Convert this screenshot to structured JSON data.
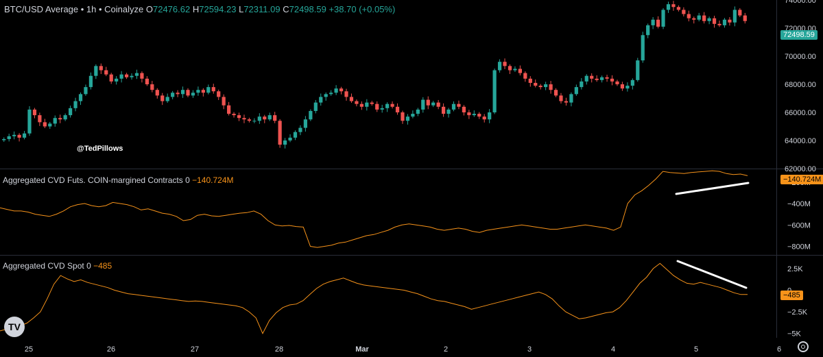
{
  "header": {
    "symbol": "BTC/USD Average • 1h • Coinalyze",
    "o_label": "O",
    "o": "72476.62",
    "h_label": "H",
    "h": "72594.23",
    "l_label": "L",
    "l": "72311.09",
    "c_label": "C",
    "c": "72498.59",
    "change": "+38.70 (+0.05%)"
  },
  "watermark": "@TedPillows",
  "panes": {
    "futs": {
      "label": "Aggregated CVD Futs. COIN-margined Contracts 0",
      "value": "−140.724M"
    },
    "spot": {
      "label": "Aggregated CVD Spot 0",
      "value": "−485"
    }
  },
  "colors": {
    "up": "#26a69a",
    "down": "#ef5350",
    "cvd": "#f7931a",
    "badge_price": "#26a69a",
    "badge_cvd": "#f7931a"
  },
  "icons": {
    "logo": "tradingview-logo-icon",
    "settings": "gear-icon"
  },
  "logo_text": "TV",
  "chart_data": [
    {
      "type": "candlestick",
      "title": "BTC/USD Average • 1h • Coinalyze",
      "x_ticks": [
        "25",
        "26",
        "27",
        "28",
        "Mar",
        "2",
        "3",
        "4",
        "5",
        "6"
      ],
      "y_ticks": [
        "74000.00",
        "72000.00",
        "70000.00",
        "68000.00",
        "66000.00",
        "64000.00",
        "62000.00"
      ],
      "ylim": [
        62000,
        74000
      ],
      "last_value": "72498.59",
      "close_series": [
        64100,
        64300,
        64400,
        64200,
        64500,
        66200,
        65800,
        65300,
        65000,
        65200,
        65600,
        65500,
        65800,
        66300,
        66800,
        67300,
        67800,
        68600,
        69300,
        69000,
        68700,
        68200,
        68400,
        68700,
        68500,
        68600,
        68800,
        68400,
        68000,
        67600,
        67200,
        66800,
        67100,
        67400,
        67300,
        67600,
        67200,
        67400,
        67600,
        67400,
        67800,
        67500,
        67100,
        66500,
        65900,
        65800,
        65600,
        65500,
        65400,
        65400,
        65700,
        65500,
        65800,
        65400,
        63700,
        64000,
        64200,
        64600,
        64900,
        65500,
        66100,
        66700,
        67100,
        67300,
        67400,
        67700,
        67500,
        67100,
        66800,
        66600,
        66400,
        66700,
        66600,
        66200,
        66300,
        66600,
        66400,
        66000,
        65400,
        65700,
        65900,
        66200,
        66900,
        66500,
        66700,
        66400,
        65900,
        66200,
        66600,
        66400,
        66000,
        65800,
        65900,
        65700,
        65500,
        66000,
        69000,
        69600,
        69300,
        69000,
        69100,
        68800,
        68400,
        68100,
        67900,
        67800,
        68000,
        67600,
        67200,
        66800,
        66700,
        67300,
        67800,
        68200,
        68600,
        68400,
        68300,
        68500,
        68400,
        68200,
        68000,
        67700,
        67900,
        68300,
        69700,
        71500,
        72200,
        72600,
        72100,
        73300,
        73700,
        73500,
        73300,
        73000,
        72700,
        72600,
        72900,
        72500,
        72700,
        72300,
        72200,
        72600,
        72400,
        73300,
        72900,
        72500
      ]
    },
    {
      "type": "line",
      "title": "Aggregated CVD Futs. COIN-margined Contracts 0",
      "y_ticks": [
        "−200M",
        "−400M",
        "−600M",
        "−800M"
      ],
      "ylim": [
        -880,
        -80
      ],
      "unit": "M",
      "last_value": "−140.724M",
      "values": [
        -440,
        -455,
        -470,
        -470,
        -480,
        -500,
        -510,
        -520,
        -500,
        -470,
        -430,
        -410,
        -400,
        -420,
        -430,
        -420,
        -390,
        -400,
        -410,
        -430,
        -460,
        -450,
        -470,
        -490,
        -500,
        -520,
        -560,
        -550,
        -510,
        -500,
        -515,
        -520,
        -510,
        -500,
        -490,
        -485,
        -470,
        -500,
        -560,
        -600,
        -610,
        -605,
        -615,
        -620,
        -800,
        -810,
        -800,
        -790,
        -770,
        -760,
        -740,
        -720,
        -700,
        -690,
        -670,
        -650,
        -620,
        -600,
        -590,
        -600,
        -610,
        -620,
        -640,
        -650,
        -640,
        -630,
        -640,
        -660,
        -670,
        -650,
        -640,
        -630,
        -620,
        -610,
        -600,
        -610,
        -620,
        -630,
        -640,
        -640,
        -630,
        -620,
        -610,
        -600,
        -610,
        -620,
        -630,
        -650,
        -620,
        -400,
        -320,
        -280,
        -230,
        -170,
        -100,
        -110,
        -115,
        -120,
        -110,
        -105,
        -100,
        -95,
        -100,
        -120,
        -130,
        -125,
        -140
      ]
    },
    {
      "type": "line",
      "title": "Aggregated CVD Spot 0",
      "y_ticks": [
        "2.5K",
        "0",
        "−2.5K",
        "−5K"
      ],
      "ylim": [
        -5500,
        4000
      ],
      "unit": "K",
      "last_value": "−485",
      "values": [
        -4700,
        -4500,
        -4200,
        -4100,
        -3800,
        -3200,
        -2500,
        -1000,
        700,
        1700,
        1300,
        1000,
        1200,
        900,
        700,
        500,
        300,
        0,
        -200,
        -400,
        -500,
        -600,
        -700,
        -800,
        -900,
        -1000,
        -1100,
        -1200,
        -1300,
        -1250,
        -1300,
        -1400,
        -1500,
        -1600,
        -1700,
        -1800,
        -2000,
        -2500,
        -3200,
        -5000,
        -3500,
        -2600,
        -2000,
        -1700,
        -1600,
        -1200,
        -500,
        200,
        700,
        1000,
        1200,
        1400,
        1100,
        800,
        600,
        500,
        400,
        300,
        200,
        100,
        0,
        -200,
        -400,
        -700,
        -1000,
        -1200,
        -1300,
        -1500,
        -1700,
        -1900,
        -2200,
        -2000,
        -1800,
        -1600,
        -1400,
        -1200,
        -1000,
        -800,
        -600,
        -400,
        -200,
        -500,
        -1000,
        -1800,
        -2500,
        -2900,
        -3300,
        -3200,
        -3000,
        -2800,
        -2600,
        -2500,
        -2000,
        -1200,
        -200,
        800,
        1500,
        2500,
        3100,
        2400,
        1700,
        1200,
        800,
        700,
        900,
        700,
        500,
        300,
        0,
        -300,
        -500,
        -485
      ]
    }
  ]
}
